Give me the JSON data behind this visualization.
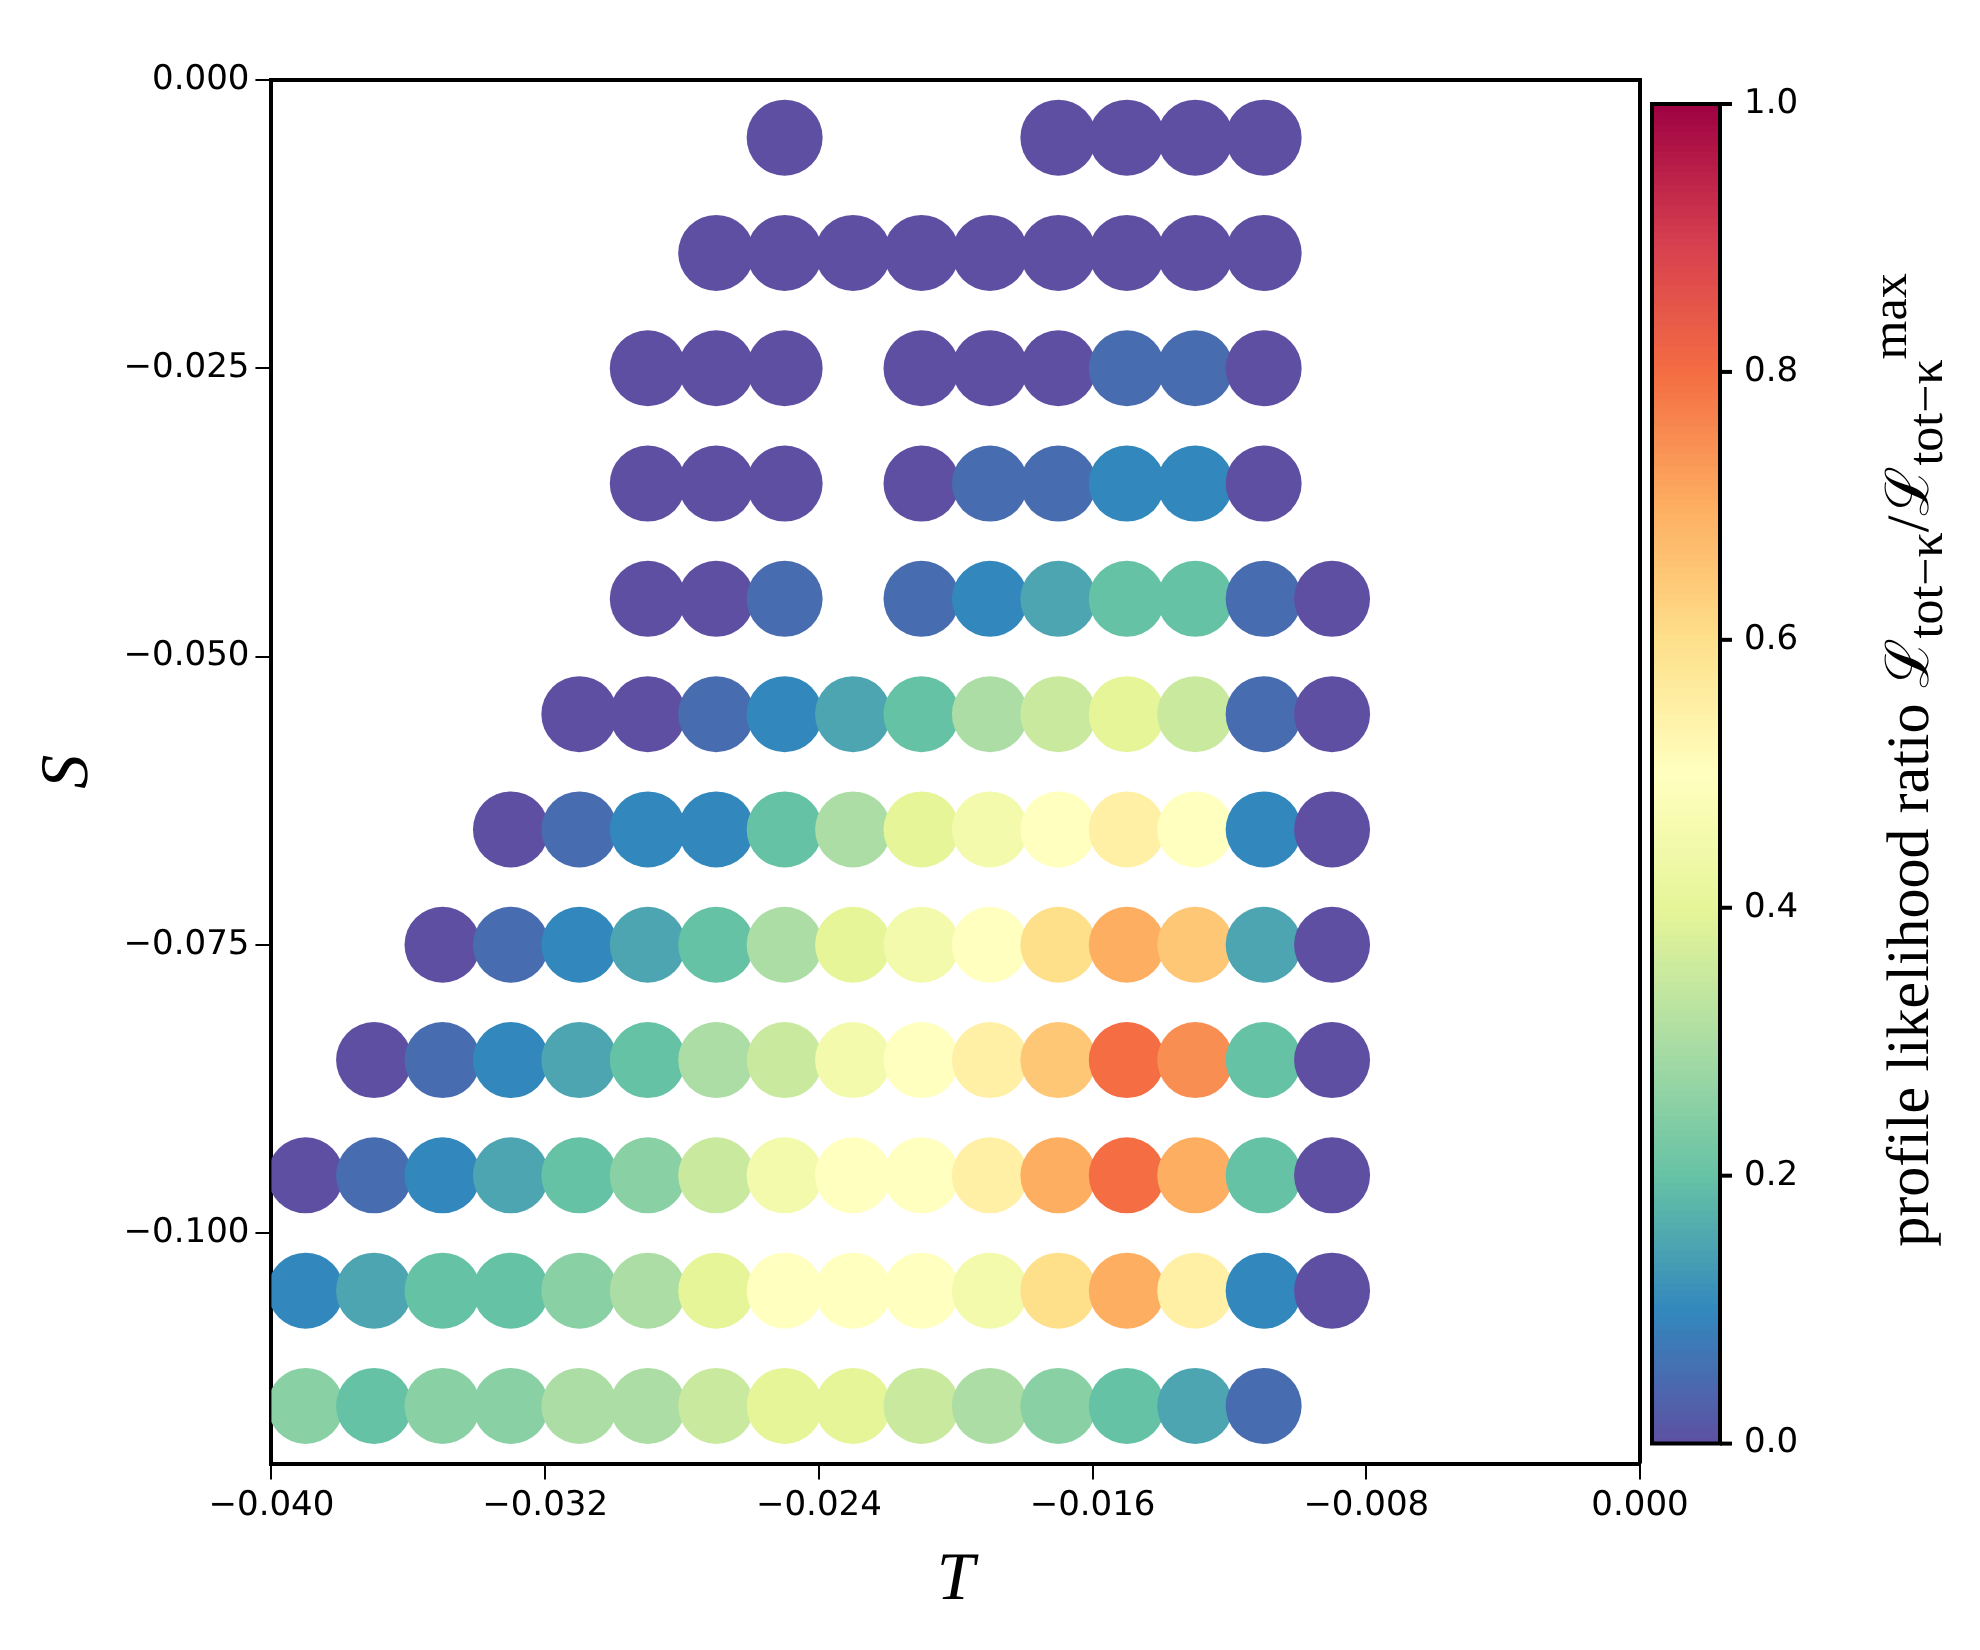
{
  "chart_data": {
    "type": "scatter",
    "xlabel": "T",
    "ylabel": "S",
    "clabel": "profile likelihood ratio ℒ$_{tot−κ}$/ℒ$_{tot−κ}$$^{max}$",
    "xlim": [
      -0.04,
      0
    ],
    "ylim": [
      -0.12,
      0
    ],
    "xticks": [
      {
        "value": -0.04,
        "label": "−0.040"
      },
      {
        "value": -0.032,
        "label": "−0.032"
      },
      {
        "value": -0.024,
        "label": "−0.024"
      },
      {
        "value": -0.016,
        "label": "−0.016"
      },
      {
        "value": -0.008,
        "label": "−0.008"
      },
      {
        "value": 0,
        "label": "0.000"
      }
    ],
    "yticks": [
      {
        "value": -0.1,
        "label": "−0.100"
      },
      {
        "value": -0.075,
        "label": "−0.075"
      },
      {
        "value": -0.05,
        "label": "−0.050"
      },
      {
        "value": -0.025,
        "label": "−0.025"
      },
      {
        "value": 0,
        "label": "0.000"
      }
    ],
    "clim": [
      0,
      1
    ],
    "cticks": [
      {
        "value": 0,
        "label": "0.0"
      },
      {
        "value": 0.2,
        "label": "0.2"
      },
      {
        "value": 0.4,
        "label": "0.4"
      },
      {
        "value": 0.6,
        "label": "0.6"
      },
      {
        "value": 0.8,
        "label": "0.8"
      },
      {
        "value": 1,
        "label": "1.0"
      }
    ],
    "grid": false,
    "legend": false,
    "marker": "circle",
    "x": [
      -0.039,
      -0.037,
      -0.035,
      -0.033,
      -0.031,
      -0.029,
      -0.027,
      -0.025,
      -0.023,
      -0.021,
      -0.019,
      -0.017,
      -0.015,
      -0.013,
      -0.011,
      -0.039,
      -0.037,
      -0.035,
      -0.033,
      -0.031,
      -0.029,
      -0.027,
      -0.025,
      -0.023,
      -0.021,
      -0.019,
      -0.017,
      -0.015,
      -0.013,
      -0.011,
      -0.009,
      -0.039,
      -0.037,
      -0.035,
      -0.033,
      -0.031,
      -0.029,
      -0.027,
      -0.025,
      -0.023,
      -0.021,
      -0.019,
      -0.017,
      -0.015,
      -0.013,
      -0.011,
      -0.009,
      -0.037,
      -0.035,
      -0.033,
      -0.031,
      -0.029,
      -0.027,
      -0.025,
      -0.023,
      -0.021,
      -0.019,
      -0.017,
      -0.015,
      -0.013,
      -0.011,
      -0.009,
      -0.035,
      -0.033,
      -0.031,
      -0.029,
      -0.027,
      -0.025,
      -0.023,
      -0.021,
      -0.019,
      -0.017,
      -0.015,
      -0.013,
      -0.011,
      -0.009,
      -0.033,
      -0.031,
      -0.029,
      -0.027,
      -0.025,
      -0.023,
      -0.021,
      -0.019,
      -0.017,
      -0.015,
      -0.013,
      -0.011,
      -0.009,
      -0.031,
      -0.029,
      -0.027,
      -0.025,
      -0.023,
      -0.021,
      -0.019,
      -0.017,
      -0.015,
      -0.013,
      -0.011,
      -0.009,
      -0.029,
      -0.027,
      -0.025,
      -0.021,
      -0.019,
      -0.017,
      -0.015,
      -0.013,
      -0.011,
      -0.009,
      -0.029,
      -0.027,
      -0.025,
      -0.021,
      -0.019,
      -0.017,
      -0.015,
      -0.013,
      -0.011,
      -0.029,
      -0.027,
      -0.025,
      -0.021,
      -0.019,
      -0.017,
      -0.015,
      -0.013,
      -0.011,
      -0.027,
      -0.025,
      -0.023,
      -0.021,
      -0.019,
      -0.017,
      -0.015,
      -0.013,
      -0.011,
      -0.025,
      -0.017,
      -0.015,
      -0.013,
      -0.011
    ],
    "values": [
      -0.115,
      -0.115,
      -0.115,
      -0.115,
      -0.115,
      -0.115,
      -0.115,
      -0.115,
      -0.115,
      -0.115,
      -0.115,
      -0.115,
      -0.115,
      -0.115,
      -0.115,
      -0.105,
      -0.105,
      -0.105,
      -0.105,
      -0.105,
      -0.105,
      -0.105,
      -0.105,
      -0.105,
      -0.105,
      -0.105,
      -0.105,
      -0.105,
      -0.105,
      -0.105,
      -0.105,
      -0.095,
      -0.095,
      -0.095,
      -0.095,
      -0.095,
      -0.095,
      -0.095,
      -0.095,
      -0.095,
      -0.095,
      -0.095,
      -0.095,
      -0.095,
      -0.095,
      -0.095,
      -0.095,
      -0.085,
      -0.085,
      -0.085,
      -0.085,
      -0.085,
      -0.085,
      -0.085,
      -0.085,
      -0.085,
      -0.085,
      -0.085,
      -0.085,
      -0.085,
      -0.085,
      -0.085,
      -0.075,
      -0.075,
      -0.075,
      -0.075,
      -0.075,
      -0.075,
      -0.075,
      -0.075,
      -0.075,
      -0.075,
      -0.075,
      -0.075,
      -0.075,
      -0.075,
      -0.065,
      -0.065,
      -0.065,
      -0.065,
      -0.065,
      -0.065,
      -0.065,
      -0.065,
      -0.065,
      -0.065,
      -0.065,
      -0.065,
      -0.065,
      -0.055,
      -0.055,
      -0.055,
      -0.055,
      -0.055,
      -0.055,
      -0.055,
      -0.055,
      -0.055,
      -0.055,
      -0.055,
      -0.055,
      -0.045,
      -0.045,
      -0.045,
      -0.045,
      -0.045,
      -0.045,
      -0.045,
      -0.045,
      -0.045,
      -0.045,
      -0.035,
      -0.035,
      -0.035,
      -0.035,
      -0.035,
      -0.035,
      -0.035,
      -0.035,
      -0.035,
      -0.025,
      -0.025,
      -0.025,
      -0.025,
      -0.025,
      -0.025,
      -0.025,
      -0.025,
      -0.025,
      -0.015,
      -0.015,
      -0.015,
      -0.015,
      -0.015,
      -0.015,
      -0.015,
      -0.015,
      -0.015,
      -0.005,
      -0.005,
      -0.005,
      -0.005,
      -0.005
    ],
    "cvalues": [
      0.25,
      0.2,
      0.25,
      0.25,
      0.3,
      0.3,
      0.35,
      0.4,
      0.4,
      0.35,
      0.3,
      0.25,
      0.2,
      0.15,
      0.05,
      0.1,
      0.15,
      0.2,
      0.2,
      0.25,
      0.3,
      0.4,
      0.5,
      0.5,
      0.5,
      0.45,
      0.6,
      0.7,
      0.55,
      0.1,
      0,
      0,
      0.05,
      0.1,
      0.15,
      0.2,
      0.25,
      0.35,
      0.45,
      0.5,
      0.5,
      0.55,
      0.7,
      0.8,
      0.7,
      0.2,
      0,
      0,
      0.05,
      0.1,
      0.15,
      0.2,
      0.3,
      0.35,
      0.45,
      0.5,
      0.55,
      0.65,
      0.8,
      0.75,
      0.2,
      0,
      0,
      0.05,
      0.1,
      0.15,
      0.2,
      0.3,
      0.4,
      0.45,
      0.5,
      0.6,
      0.7,
      0.65,
      0.15,
      0,
      0,
      0.05,
      0.1,
      0.1,
      0.2,
      0.3,
      0.4,
      0.45,
      0.5,
      0.55,
      0.5,
      0.1,
      0,
      0,
      0,
      0.05,
      0.1,
      0.15,
      0.2,
      0.3,
      0.35,
      0.4,
      0.35,
      0.05,
      0,
      0,
      0,
      0.05,
      0.05,
      0.1,
      0.15,
      0.2,
      0.2,
      0.05,
      0,
      0,
      0,
      0,
      0,
      0.05,
      0.05,
      0.1,
      0.1,
      0,
      0,
      0,
      0,
      0,
      0,
      0,
      0.05,
      0.05,
      0,
      0,
      0,
      0,
      0,
      0,
      0,
      0,
      0,
      0,
      0,
      0,
      0,
      0,
      0
    ]
  }
}
